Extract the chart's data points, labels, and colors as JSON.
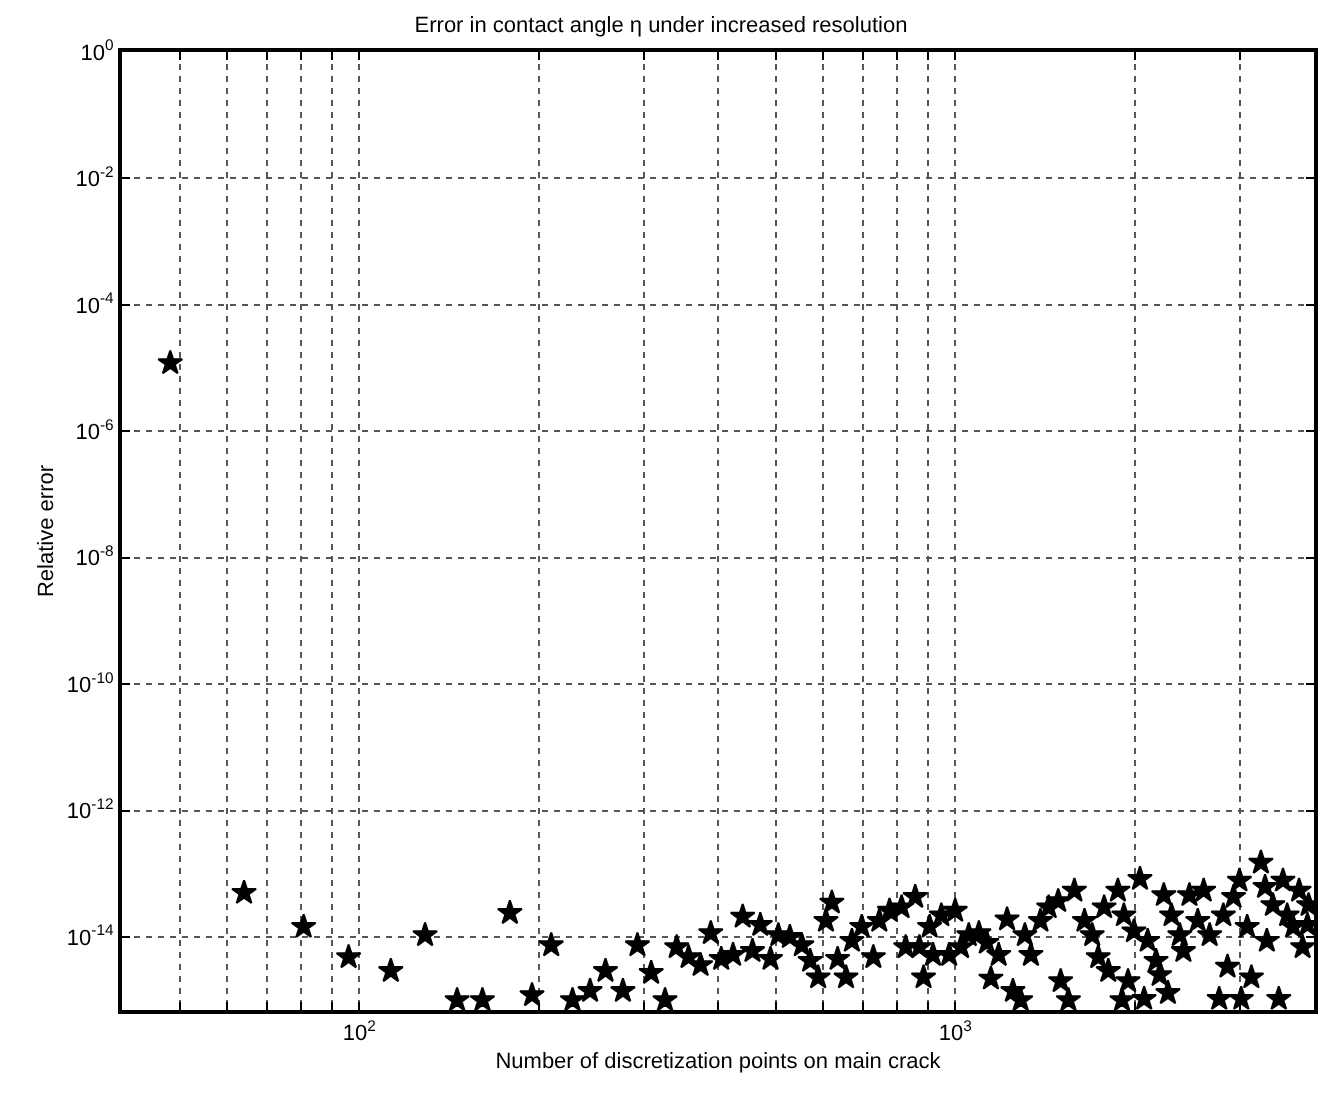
{
  "chart_data": {
    "type": "scatter",
    "title": "Error in contact angle η under increased resolution",
    "xlabel": "Number of discretization points on main crack",
    "ylabel": "Relative error",
    "log": "xy",
    "grid": true,
    "legend": false,
    "marker": "star",
    "xlim": [
      40,
      4000
    ],
    "ylim": [
      7e-16,
      1
    ],
    "xticks": [
      {
        "value": 50,
        "label": null
      },
      {
        "value": 60,
        "label": null
      },
      {
        "value": 70,
        "label": null
      },
      {
        "value": 80,
        "label": null
      },
      {
        "value": 90,
        "label": null
      },
      {
        "value": 100,
        "label": "10$^{2}$"
      },
      {
        "value": 200,
        "label": null
      },
      {
        "value": 300,
        "label": null
      },
      {
        "value": 400,
        "label": null
      },
      {
        "value": 500,
        "label": null
      },
      {
        "value": 600,
        "label": null
      },
      {
        "value": 700,
        "label": null
      },
      {
        "value": 800,
        "label": null
      },
      {
        "value": 900,
        "label": null
      },
      {
        "value": 1000,
        "label": "10$^{3}$"
      },
      {
        "value": 2000,
        "label": null
      },
      {
        "value": 3000,
        "label": null
      },
      {
        "value": 4000,
        "label": null
      }
    ],
    "yticks": [
      {
        "value": 1e-14,
        "label": "10$^{-14}$"
      },
      {
        "value": 1e-12,
        "label": "10$^{-12}$"
      },
      {
        "value": 1e-10,
        "label": "10$^{-10}$"
      },
      {
        "value": 1e-08,
        "label": "10$^{-8}$"
      },
      {
        "value": 1e-06,
        "label": "10$^{-6}$"
      },
      {
        "value": 0.0001,
        "label": "10$^{-4}$"
      },
      {
        "value": 0.01,
        "label": "10$^{-2}$"
      },
      {
        "value": 1,
        "label": "10$^{0}$"
      }
    ],
    "series": [
      {
        "color": "#000000",
        "x": [
          48.2,
          64.1,
          80.7,
          96,
          113,
          129,
          146,
          161,
          179,
          195,
          210,
          228,
          244,
          259,
          277,
          293,
          309,
          326,
          341,
          357,
          374,
          389,
          405,
          424,
          440,
          457,
          471,
          490,
          505,
          528,
          553,
          571,
          589,
          607,
          621,
          635,
          656,
          671,
          697,
          729,
          746,
          776,
          813,
          857,
          826,
          871,
          885,
          906,
          918,
          948,
          977,
          1000,
          1023,
          1054,
          1096,
          1130,
          1148,
          1183,
          1222,
          1250,
          1288,
          1309,
          1340,
          1390,
          1435,
          1489,
          1503,
          1549,
          1585,
          1648,
          1698,
          1738,
          1778,
          1807,
          1875,
          1919,
          1950,
          1905,
          1995,
          2042,
          2075,
          2104,
          2173,
          2203,
          2239,
          2275,
          2307,
          2382,
          2415,
          2472,
          2553,
          2612,
          2673,
          2773,
          2818,
          2864,
          2931,
          2999,
          3020,
          3090,
          3141,
          3258,
          3311,
          3334,
          3412,
          3491,
          3548,
          3606,
          3690,
          3776,
          3828,
          3917,
          3900
        ],
        "values": [
          1.2e-05,
          5e-14,
          1.45e-14,
          4.8e-15,
          2.9e-15,
          1.07e-14,
          1e-15,
          1e-15,
          2.4e-14,
          1.2e-15,
          7.4e-15,
          1e-15,
          1.4e-15,
          2.9e-15,
          1.4e-15,
          7.4e-15,
          2.7e-15,
          1e-15,
          6.9e-15,
          4.8e-15,
          3.6e-15,
          1.15e-14,
          4.5e-15,
          5.2e-15,
          2.1e-14,
          6e-15,
          1.55e-14,
          4.5e-15,
          1.07e-14,
          1e-14,
          7.4e-15,
          4.2e-15,
          2.3e-15,
          1.8e-14,
          3.5e-14,
          4.5e-15,
          2.3e-15,
          8.7e-15,
          1.45e-14,
          4.8e-15,
          1.8e-14,
          2.6e-14,
          2.95e-14,
          4.3e-14,
          6.9e-15,
          6.9e-15,
          2.3e-15,
          1.45e-14,
          5.2e-15,
          2.2e-14,
          5.2e-15,
          2.6e-14,
          6.9e-15,
          1.07e-14,
          1.15e-14,
          8.1e-15,
          2.2e-15,
          5.2e-15,
          1.9e-14,
          1.4e-15,
          1e-15,
          1.07e-14,
          5.2e-15,
          1.8e-14,
          2.95e-14,
          3.7e-14,
          2e-15,
          1e-15,
          5.4e-14,
          1.8e-14,
          1.07e-14,
          4.8e-15,
          2.95e-14,
          2.9e-15,
          5.4e-14,
          2.2e-14,
          2e-15,
          1e-15,
          1.23e-14,
          8.3e-14,
          1.05e-15,
          8.7e-15,
          4.2e-15,
          2.5e-15,
          4.6e-14,
          1.3e-15,
          2.2e-14,
          1.07e-14,
          6e-15,
          4.6e-14,
          1.8e-14,
          5.4e-14,
          1.07e-14,
          1.05e-15,
          2.2e-14,
          3.4e-15,
          4.3e-14,
          7.8e-14,
          1.05e-15,
          1.45e-14,
          2.3e-15,
          1.5e-13,
          6.2e-14,
          8.7e-15,
          3.2e-14,
          1.05e-15,
          7.8e-14,
          2.2e-14,
          1.45e-14,
          5.4e-14,
          6.9e-15,
          3.2e-14,
          1.55e-14
        ]
      }
    ]
  }
}
